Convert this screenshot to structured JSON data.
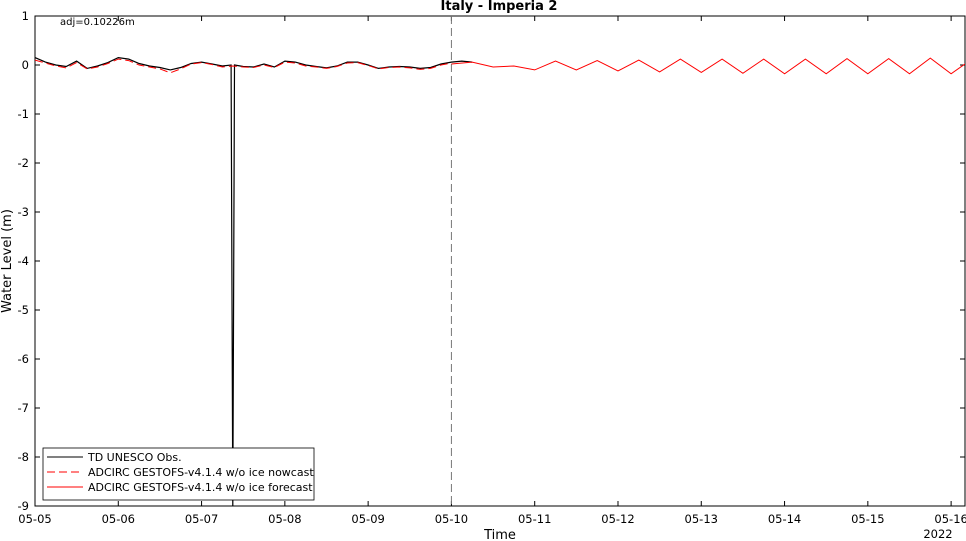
{
  "chart_data": {
    "type": "line",
    "title": "Italy - Imperia 2",
    "xlabel": "Time",
    "ylabel": "Water Level (m)",
    "year_label": "2022",
    "annotation": "adj=0.10226m",
    "xlim": [
      "2022-05-05",
      "2022-05-16 04:00"
    ],
    "ylim": [
      -9,
      1
    ],
    "x_ticks": [
      "05-05",
      "05-06",
      "05-07",
      "05-08",
      "05-09",
      "05-10",
      "05-11",
      "05-12",
      "05-13",
      "05-14",
      "05-15",
      "05-16"
    ],
    "y_ticks": [
      1,
      0,
      -1,
      -2,
      -3,
      -4,
      -5,
      -6,
      -7,
      -8,
      -9
    ],
    "grid": false,
    "legend_position": "lower-left",
    "nowcast_forecast_divider": "2022-05-10",
    "series": [
      {
        "name": "TD UNESCO Obs.",
        "color": "#000000",
        "style": "solid",
        "x": [
          "2022-05-05 00:00",
          "2022-05-05 03:00",
          "2022-05-05 06:00",
          "2022-05-05 09:00",
          "2022-05-05 12:00",
          "2022-05-05 15:00",
          "2022-05-05 18:00",
          "2022-05-05 21:00",
          "2022-05-06 00:00",
          "2022-05-06 03:00",
          "2022-05-06 06:00",
          "2022-05-06 09:00",
          "2022-05-06 12:00",
          "2022-05-06 15:00",
          "2022-05-06 18:00",
          "2022-05-06 21:00",
          "2022-05-07 00:00",
          "2022-05-07 03:00",
          "2022-05-07 06:00",
          "2022-05-07 08:30",
          "2022-05-07 09:00",
          "2022-05-07 09:30",
          "2022-05-07 12:00",
          "2022-05-07 15:00",
          "2022-05-07 18:00",
          "2022-05-07 21:00",
          "2022-05-08 00:00",
          "2022-05-08 03:00",
          "2022-05-08 06:00",
          "2022-05-08 09:00",
          "2022-05-08 12:00",
          "2022-05-08 15:00",
          "2022-05-08 18:00",
          "2022-05-08 21:00",
          "2022-05-09 00:00",
          "2022-05-09 03:00",
          "2022-05-09 06:00",
          "2022-05-09 09:00",
          "2022-05-09 12:00",
          "2022-05-09 15:00",
          "2022-05-09 18:00",
          "2022-05-09 21:00",
          "2022-05-10 00:00",
          "2022-05-10 03:00",
          "2022-05-10 06:00"
        ],
        "y": [
          0.15,
          0.06,
          0.0,
          -0.03,
          0.08,
          -0.07,
          -0.02,
          0.05,
          0.15,
          0.12,
          0.03,
          -0.02,
          -0.05,
          -0.1,
          -0.05,
          0.03,
          0.06,
          0.02,
          -0.02,
          0.0,
          -9.0,
          0.0,
          -0.03,
          -0.04,
          0.02,
          -0.04,
          0.08,
          0.06,
          0.0,
          -0.03,
          -0.06,
          -0.02,
          0.06,
          0.06,
          0.0,
          -0.07,
          -0.04,
          -0.03,
          -0.04,
          -0.07,
          -0.05,
          0.02,
          0.06,
          0.08,
          0.06
        ]
      },
      {
        "name": "ADCIRC GESTOFS-v4.1.4 w/o ice nowcast",
        "color": "#ff0000",
        "style": "dashed",
        "x": [
          "2022-05-05 00:00",
          "2022-05-05 03:00",
          "2022-05-05 06:00",
          "2022-05-05 09:00",
          "2022-05-05 12:00",
          "2022-05-05 15:00",
          "2022-05-05 18:00",
          "2022-05-05 21:00",
          "2022-05-06 00:00",
          "2022-05-06 03:00",
          "2022-05-06 06:00",
          "2022-05-06 09:00",
          "2022-05-06 12:00",
          "2022-05-06 15:00",
          "2022-05-06 18:00",
          "2022-05-06 21:00",
          "2022-05-07 00:00",
          "2022-05-07 03:00",
          "2022-05-07 06:00",
          "2022-05-07 09:00",
          "2022-05-07 12:00",
          "2022-05-07 15:00",
          "2022-05-07 18:00",
          "2022-05-07 21:00",
          "2022-05-08 00:00",
          "2022-05-08 03:00",
          "2022-05-08 06:00",
          "2022-05-08 09:00",
          "2022-05-08 12:00",
          "2022-05-08 15:00",
          "2022-05-08 18:00",
          "2022-05-08 21:00",
          "2022-05-09 00:00",
          "2022-05-09 03:00",
          "2022-05-09 06:00",
          "2022-05-09 09:00",
          "2022-05-09 12:00",
          "2022-05-09 15:00",
          "2022-05-09 18:00",
          "2022-05-09 21:00",
          "2022-05-10 00:00"
        ],
        "y": [
          0.1,
          0.04,
          -0.02,
          -0.06,
          0.05,
          -0.08,
          -0.04,
          0.03,
          0.12,
          0.09,
          0.0,
          -0.04,
          -0.08,
          -0.16,
          -0.08,
          0.02,
          0.05,
          0.01,
          -0.04,
          -0.02,
          -0.04,
          -0.05,
          0.0,
          -0.05,
          0.06,
          0.04,
          -0.02,
          -0.04,
          -0.07,
          -0.03,
          0.04,
          0.05,
          -0.01,
          -0.08,
          -0.05,
          -0.04,
          -0.06,
          -0.09,
          -0.07,
          0.0,
          0.04
        ]
      },
      {
        "name": "ADCIRC GESTOFS-v4.1.4 w/o ice forecast",
        "color": "#ff0000",
        "style": "solid",
        "x": [
          "2022-05-10 00:00",
          "2022-05-10 06:00",
          "2022-05-10 12:00",
          "2022-05-10 18:00",
          "2022-05-11 00:00",
          "2022-05-11 06:00",
          "2022-05-11 12:00",
          "2022-05-11 18:00",
          "2022-05-12 00:00",
          "2022-05-12 06:00",
          "2022-05-12 12:00",
          "2022-05-12 18:00",
          "2022-05-13 00:00",
          "2022-05-13 06:00",
          "2022-05-13 12:00",
          "2022-05-13 18:00",
          "2022-05-14 00:00",
          "2022-05-14 06:00",
          "2022-05-14 12:00",
          "2022-05-14 18:00",
          "2022-05-15 00:00",
          "2022-05-15 06:00",
          "2022-05-15 12:00",
          "2022-05-15 18:00",
          "2022-05-16 00:00",
          "2022-05-16 06:00"
        ],
        "y": [
          0.02,
          0.06,
          -0.04,
          -0.02,
          -0.1,
          0.08,
          -0.1,
          0.09,
          -0.12,
          0.1,
          -0.14,
          0.12,
          -0.15,
          0.12,
          -0.17,
          0.12,
          -0.18,
          0.12,
          -0.18,
          0.13,
          -0.18,
          0.13,
          -0.18,
          0.14,
          -0.18,
          0.12
        ]
      }
    ]
  }
}
